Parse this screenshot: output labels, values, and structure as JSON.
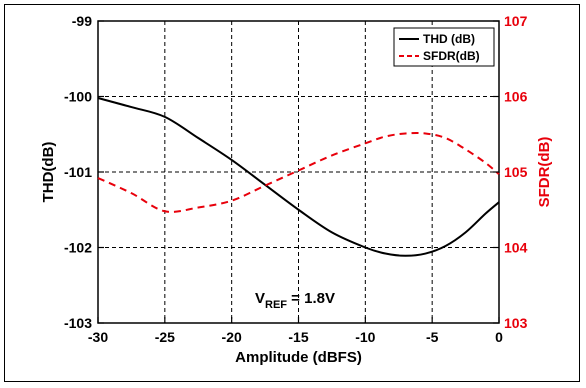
{
  "chart_data": {
    "type": "line",
    "title": "",
    "xlabel": "Amplitude (dBFS)",
    "ylabel_left": "THD(dB)",
    "ylabel_right": "SFDR(dB)",
    "xlim": [
      -30,
      0
    ],
    "ylim_left": [
      -103,
      -99
    ],
    "ylim_right": [
      103,
      107
    ],
    "x_ticks": [
      "-30",
      "-25",
      "-20",
      "-15",
      "-10",
      "-5",
      "0"
    ],
    "y_ticks_left": [
      "-99",
      "-100",
      "-101",
      "-102",
      "-103"
    ],
    "y_ticks_right": [
      "107",
      "106",
      "105",
      "104",
      "103"
    ],
    "grid": true,
    "legend_position": "top-right",
    "colors": {
      "thd": "#000000",
      "sfdr": "#e8000b",
      "right_axis": "#e8000b"
    },
    "series": [
      {
        "name": "THD (dB)",
        "axis": "left",
        "style": "solid",
        "x": [
          -30,
          -27.5,
          -25,
          -22.5,
          -20,
          -17.5,
          -15,
          -12.5,
          -10,
          -8.5,
          -7,
          -5.5,
          -4,
          -2.5,
          -1,
          0
        ],
        "y": [
          -100.02,
          -100.14,
          -100.27,
          -100.55,
          -100.84,
          -101.17,
          -101.5,
          -101.8,
          -102.0,
          -102.08,
          -102.11,
          -102.08,
          -101.98,
          -101.8,
          -101.55,
          -101.4
        ]
      },
      {
        "name": "SFDR(dB)",
        "axis": "right",
        "style": "dashed",
        "x": [
          -30,
          -27.5,
          -25,
          -22.5,
          -20,
          -17.5,
          -15,
          -12.5,
          -10,
          -8.5,
          -7,
          -5.5,
          -4,
          -2.5,
          -1,
          0
        ],
        "y": [
          104.92,
          104.72,
          104.48,
          104.53,
          104.62,
          104.82,
          105.02,
          105.22,
          105.38,
          105.47,
          105.51,
          105.51,
          105.45,
          105.3,
          105.12,
          104.97
        ]
      }
    ],
    "annotation": {
      "main": "V",
      "sub": "REF",
      "rest": " = 1.8V"
    }
  }
}
